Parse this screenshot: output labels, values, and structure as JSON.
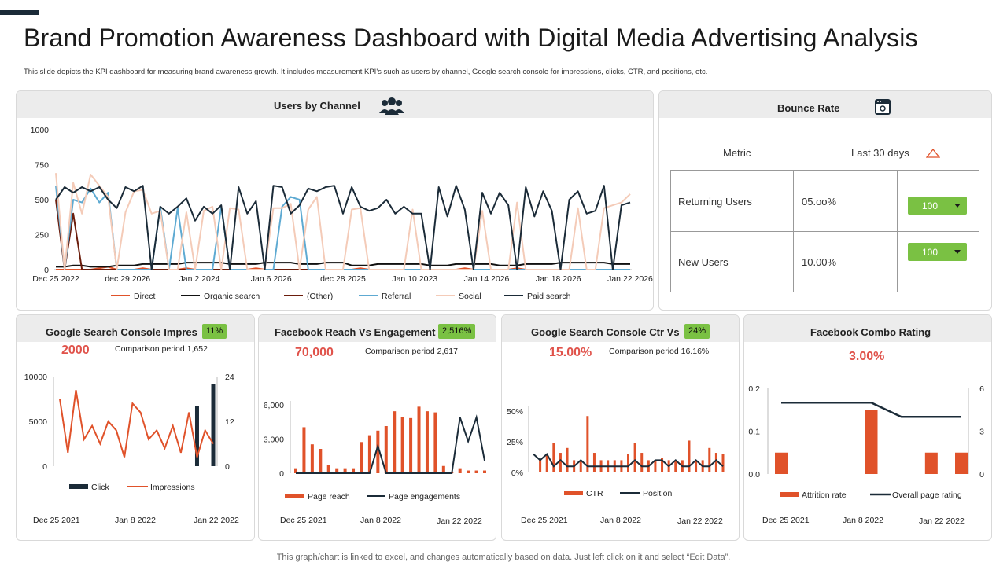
{
  "page": {
    "title": "Brand Promotion Awareness Dashboard with Digital Media Advertising Analysis",
    "subtitle": "This slide depicts the KPI dashboard for measuring brand awareness growth. It includes measurement KPI's  such as users by channel, Google search console for impressions, clicks, CTR, and positions, etc.",
    "footer": "This graph/chart is linked to excel,  and changes automatically based on data. Just left click on it and select “Edit Data”."
  },
  "colors": {
    "accent": "#1b2b38",
    "orange": "#e0522a",
    "green": "#7ac143",
    "kpi_red": "#e0524a"
  },
  "users_by_channel": {
    "title": "Users by Channel",
    "icon": "users-group-icon",
    "chart_data": {
      "type": "line",
      "y_ticks": [
        "1000",
        "750",
        "500",
        "250",
        "0"
      ],
      "ylim": [
        0,
        1000
      ],
      "x_ticks": [
        "Dec 25 2022",
        "dec 29 2026",
        "Jan 2 2024",
        "Jan 6 2026",
        "dec 28 2025",
        "Jan 10  2023",
        "Jan 14  2026",
        "Jan 18  2026",
        "Jan 22 2026"
      ],
      "series": [
        {
          "name": "Direct",
          "color": "#e0522a",
          "values": [
            0,
            0,
            0,
            0,
            0,
            10,
            20,
            0,
            0,
            0,
            10,
            0,
            0,
            0,
            0,
            10,
            0,
            0,
            0,
            0,
            0,
            0,
            0,
            10,
            0,
            0,
            0,
            0,
            0,
            0,
            0,
            0,
            0,
            0,
            0,
            10,
            0,
            0,
            0,
            0,
            0,
            0,
            0,
            0,
            0,
            0,
            0,
            10,
            0,
            0,
            0,
            0,
            0,
            10,
            0,
            0,
            0,
            0,
            0,
            0,
            0,
            0,
            0,
            0,
            0,
            0,
            0
          ]
        },
        {
          "name": "Organic search",
          "color": "#111111",
          "values": [
            20,
            20,
            30,
            30,
            20,
            20,
            20,
            30,
            30,
            30,
            40,
            40,
            40,
            40,
            40,
            50,
            50,
            50,
            50,
            50,
            40,
            40,
            40,
            40,
            50,
            50,
            50,
            50,
            40,
            40,
            40,
            50,
            50,
            50,
            30,
            30,
            30,
            40,
            40,
            40,
            40,
            40,
            40,
            30,
            30,
            30,
            40,
            40,
            40,
            40,
            40,
            30,
            30,
            30,
            40,
            40,
            40,
            40,
            50,
            50,
            50,
            50,
            50,
            50,
            40,
            40,
            40
          ]
        },
        {
          "name": "(Other)",
          "color": "#6b1d0c",
          "values": [
            500,
            0,
            400,
            0,
            0,
            0,
            0,
            0,
            0,
            0,
            0,
            0,
            0,
            0,
            0,
            0,
            0,
            0,
            0,
            0,
            0,
            0,
            0,
            0,
            0,
            0,
            0,
            0,
            0,
            0,
            0,
            0,
            0,
            0,
            0,
            0,
            0,
            0,
            0,
            0,
            0,
            0,
            0,
            0,
            0,
            0,
            0,
            0,
            0,
            0,
            0,
            0,
            0,
            0,
            0,
            0,
            0,
            0,
            0,
            0,
            0,
            0,
            0,
            0,
            0,
            0,
            0
          ]
        },
        {
          "name": "Referral",
          "color": "#5eaad2",
          "values": [
            600,
            0,
            500,
            480,
            580,
            480,
            550,
            0,
            0,
            0,
            0,
            0,
            450,
            0,
            440,
            0,
            0,
            0,
            0,
            450,
            0,
            0,
            0,
            0,
            0,
            0,
            450,
            520,
            500,
            0,
            0,
            0,
            0,
            0,
            0,
            0,
            0,
            0,
            0,
            0,
            0,
            0,
            0,
            0,
            0,
            0,
            0,
            0,
            0,
            0,
            0,
            0,
            0,
            0,
            0,
            0,
            0,
            0,
            0,
            0,
            0,
            0,
            0,
            0,
            0,
            0,
            0
          ]
        },
        {
          "name": "Social",
          "color": "#f4cbb8",
          "values": [
            690,
            0,
            620,
            400,
            680,
            600,
            520,
            0,
            410,
            560,
            570,
            400,
            420,
            0,
            0,
            410,
            0,
            420,
            450,
            0,
            440,
            430,
            0,
            0,
            0,
            440,
            440,
            470,
            0,
            430,
            520,
            0,
            0,
            0,
            430,
            440,
            0,
            0,
            0,
            0,
            0,
            430,
            0,
            0,
            0,
            0,
            0,
            0,
            0,
            420,
            0,
            0,
            0,
            480,
            0,
            0,
            0,
            0,
            0,
            0,
            440,
            0,
            0,
            440,
            460,
            480,
            540
          ]
        },
        {
          "name": "Paid search",
          "color": "#1b2b38",
          "values": [
            500,
            590,
            550,
            590,
            560,
            590,
            500,
            440,
            590,
            560,
            600,
            0,
            450,
            400,
            450,
            510,
            350,
            450,
            400,
            460,
            0,
            590,
            400,
            490,
            0,
            600,
            590,
            400,
            460,
            580,
            560,
            590,
            600,
            400,
            590,
            450,
            420,
            440,
            500,
            400,
            450,
            400,
            400,
            0,
            590,
            380,
            600,
            430,
            0,
            550,
            400,
            550,
            460,
            0,
            590,
            380,
            560,
            420,
            0,
            500,
            560,
            400,
            420,
            600,
            0,
            460,
            480
          ]
        }
      ]
    }
  },
  "bounce_rate": {
    "title": "Bounce Rate",
    "icon": "browser-window-icon",
    "metric_header": "Metric",
    "period_header": "Last 30 days",
    "rows": [
      {
        "label": "Returning Users",
        "value": "05.oo%",
        "dropdown": "100"
      },
      {
        "label": "New Users",
        "value": "10.00%",
        "dropdown": "100"
      }
    ]
  },
  "gsc_impressions": {
    "title": "Google Search Console Impres",
    "badge": "11%",
    "value": "2000",
    "comparison": "Comparison period 1,652",
    "dates": [
      "Dec 25 2021",
      "Jan 8 2022",
      "Jan 22 2022"
    ],
    "chart_data": {
      "type": "combo",
      "left_ticks": [
        "10000",
        "5000",
        "0"
      ],
      "right_ticks": [
        "24",
        "12",
        "0"
      ],
      "left_lim": [
        0,
        10000
      ],
      "right_lim": [
        0,
        24
      ],
      "series": [
        {
          "name": "Click",
          "type": "bar",
          "axis": "right",
          "color": "#1b2b38",
          "values": [
            0,
            0,
            0,
            0,
            0,
            0,
            0,
            0,
            0,
            0,
            0,
            0,
            0,
            0,
            0,
            0,
            0,
            16,
            0,
            22
          ]
        },
        {
          "name": "Impressions",
          "type": "line",
          "axis": "left",
          "color": "#e0522a",
          "values": [
            7500,
            1500,
            8500,
            3000,
            4500,
            2500,
            5000,
            4000,
            1000,
            7000,
            6000,
            3000,
            4000,
            2000,
            4500,
            1500,
            6000,
            1000,
            4000,
            2500
          ]
        }
      ]
    }
  },
  "facebook_reach": {
    "title": "Facebook Reach Vs Engagement",
    "badge": "2,516%",
    "value": "70,000",
    "comparison": "Comparison period 2,617",
    "dates": [
      "Dec 25 2021",
      "Jan 8 2022",
      "Jan 22 2022"
    ],
    "chart_data": {
      "type": "combo",
      "y_ticks": [
        "6,000",
        "3,000",
        "0"
      ],
      "ylim": [
        0,
        6000
      ],
      "series": [
        {
          "name": "Page reach",
          "type": "bar",
          "color": "#e0522a",
          "values": [
            300,
            3900,
            2400,
            2000,
            600,
            300,
            300,
            300,
            2600,
            3200,
            3600,
            4000,
            5300,
            4800,
            4700,
            5700,
            5300,
            5200,
            500,
            0,
            300,
            100,
            100,
            100
          ]
        },
        {
          "name": "Page engagements",
          "type": "line",
          "color": "#1b2b38",
          "values": [
            0,
            0,
            0,
            0,
            0,
            0,
            0,
            0,
            0,
            0,
            2400,
            0,
            0,
            0,
            0,
            0,
            0,
            0,
            0,
            0,
            4900,
            2800,
            4900,
            1100
          ]
        }
      ]
    }
  },
  "gsc_ctr": {
    "title": "Google Search Console Ctr Vs",
    "badge": "24%",
    "value": "15.00%",
    "comparison": "Comparison period 16.16%",
    "dates": [
      "Dec 25 2021",
      "Jan 8 2022",
      "Jan 22 2022"
    ],
    "chart_data": {
      "type": "combo",
      "y_ticks": [
        "50%",
        "25%",
        "0%"
      ],
      "ylim": [
        0,
        50
      ],
      "series": [
        {
          "name": "CTR",
          "type": "bar",
          "color": "#e0522a",
          "values": [
            0,
            10,
            15,
            24,
            16,
            20,
            10,
            10,
            46,
            16,
            10,
            10,
            10,
            10,
            15,
            24,
            16,
            10,
            10,
            12,
            10,
            10,
            10,
            26,
            10,
            10,
            20,
            16,
            15
          ]
        },
        {
          "name": "Position",
          "type": "line",
          "color": "#1b2b38",
          "values": [
            15,
            10,
            15,
            5,
            10,
            5,
            5,
            10,
            5,
            5,
            5,
            5,
            5,
            5,
            5,
            10,
            5,
            5,
            10,
            10,
            5,
            10,
            5,
            5,
            10,
            5,
            5,
            10,
            5
          ]
        }
      ]
    }
  },
  "facebook_combo": {
    "title": "Facebook Combo Rating",
    "value": "3.00%",
    "dates": [
      "Dec 25 2021",
      "Jan 8 2022",
      "Jan 22 2022"
    ],
    "chart_data": {
      "type": "combo",
      "left_ticks": [
        "0.2",
        "0.1",
        "0.0"
      ],
      "right_ticks": [
        "6",
        "3",
        "0"
      ],
      "left_lim": [
        0,
        0.2
      ],
      "right_lim": [
        0,
        6
      ],
      "series": [
        {
          "name": "Attrition rate",
          "type": "bar",
          "axis": "left",
          "color": "#e0522a",
          "values": [
            0.05,
            0,
            0,
            0.15,
            0,
            0.05,
            0.05
          ]
        },
        {
          "name": "Overall page rating",
          "type": "line",
          "axis": "right",
          "color": "#1b2b38",
          "values": [
            5,
            5,
            5,
            5,
            4,
            4,
            4
          ]
        }
      ]
    }
  }
}
